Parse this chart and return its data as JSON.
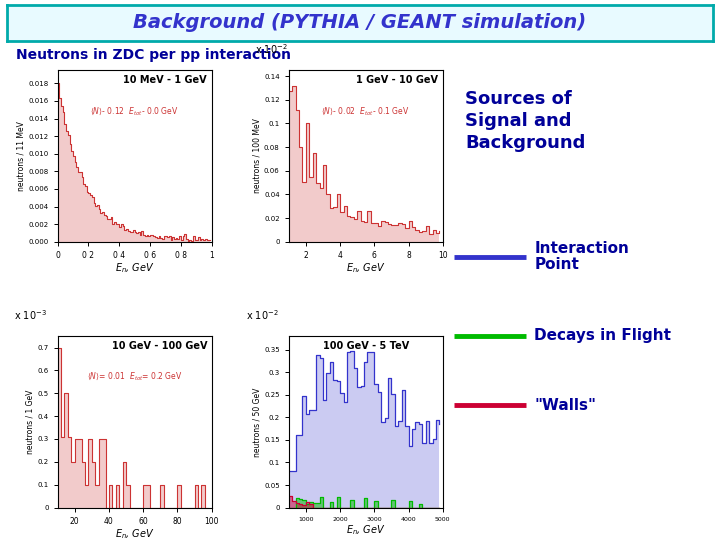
{
  "title": "Background (PYTHIA / GEANT simulation)",
  "subtitle": "Neutrons in ZDC per pp interaction",
  "title_color": "#3333CC",
  "subtitle_color": "#000099",
  "bg_color": "#FFFFFF",
  "header_bg": "#CCFFFF",
  "panel_titles": [
    "10 MeV - 1 GeV",
    "1 GeV - 10 GeV",
    "10 GeV - 100 GeV",
    "100 GeV - 5 TeV"
  ],
  "panel_annotations": [
    "<N>- 0.12  E_tot- 0.0 GeV",
    "<N>- 0.02  E_tot- 0.1 GeV",
    "<N>= 0.01  E_tot= 0.2 GeV",
    ""
  ],
  "xlabels": [
    "E_n, GeV",
    "E_n, GeV",
    "E_n, GeV",
    "E_n, GeV"
  ],
  "ylabels": [
    "neutrons / 11 MeV",
    "neutrons / 100 MeV",
    "neutrons / 1 GeV",
    "neutrons / 50 GeV"
  ],
  "legend_items": [
    {
      "label": "Interaction\nPoint",
      "color": "#3333CC"
    },
    {
      "label": "Decays in Flight",
      "color": "#00BB00"
    },
    {
      "label": "\"Walls\"",
      "color": "#CC0033"
    }
  ],
  "sources_text": "Sources of\nSignal and\nBackground",
  "hist_color": "#CC3333",
  "blue_color": "#3333CC",
  "green_color": "#00BB00",
  "red_color": "#CC0033"
}
